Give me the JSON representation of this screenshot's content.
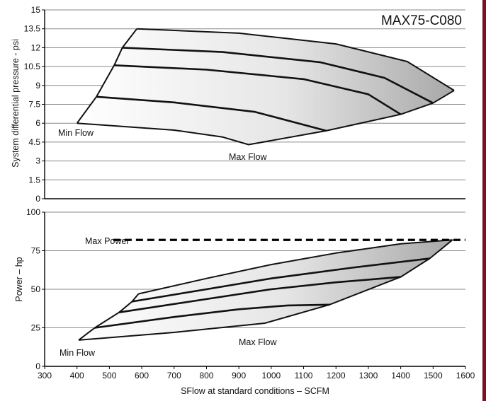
{
  "model_label": "MAX75-C080",
  "right_border_color": "#7a1020",
  "chart_data": [
    {
      "type": "area",
      "title": "MAX75-C080",
      "xlabel": "",
      "ylabel": "System differential pressure - psi",
      "xlim": [
        300,
        1600
      ],
      "ylim": [
        0,
        15
      ],
      "yticks": [
        0,
        1.5,
        3,
        4.5,
        6,
        7.5,
        9,
        10.5,
        12,
        13.5,
        15
      ],
      "yticklabels": [
        "0",
        "1.5",
        "3",
        "4.5",
        "6",
        "7.5",
        "9",
        "10.5",
        "12",
        "13.5",
        "15"
      ],
      "grid": true,
      "annotations": [
        "Min Flow",
        "Max Flow"
      ],
      "envelope": {
        "min_flow": [
          [
            400,
            6
          ],
          [
            460,
            8.1
          ],
          [
            515,
            10.6
          ],
          [
            540,
            12
          ],
          [
            585,
            13.5
          ]
        ],
        "max_flow": [
          [
            400,
            6
          ],
          [
            700,
            5.45
          ],
          [
            850,
            4.9
          ],
          [
            930,
            4.3
          ],
          [
            1170,
            5.4
          ],
          [
            1400,
            6.7
          ],
          [
            1500,
            7.6
          ],
          [
            1565,
            8.6
          ]
        ],
        "top": [
          [
            585,
            13.5
          ],
          [
            900,
            13.15
          ],
          [
            1200,
            12.3
          ],
          [
            1420,
            10.9
          ],
          [
            1565,
            8.6
          ]
        ]
      },
      "series": [
        {
          "values": [
            [
              460,
              8.1
            ],
            [
              700,
              7.65
            ],
            [
              950,
              6.9
            ],
            [
              1170,
              5.4
            ]
          ]
        },
        {
          "values": [
            [
              515,
              10.6
            ],
            [
              800,
              10.25
            ],
            [
              1100,
              9.5
            ],
            [
              1300,
              8.3
            ],
            [
              1400,
              6.7
            ]
          ]
        },
        {
          "values": [
            [
              540,
              12
            ],
            [
              850,
              11.65
            ],
            [
              1150,
              10.85
            ],
            [
              1350,
              9.6
            ],
            [
              1500,
              7.6
            ]
          ]
        }
      ]
    },
    {
      "type": "area",
      "title": "",
      "xlabel": "SFlow at standard conditions – SCFM",
      "ylabel": "Power – hp",
      "xlim": [
        300,
        1600
      ],
      "ylim": [
        0,
        100
      ],
      "xticks": [
        300,
        400,
        500,
        600,
        700,
        800,
        900,
        1000,
        1100,
        1200,
        1300,
        1400,
        1500,
        1600
      ],
      "xticklabels": [
        "300",
        "400",
        "500",
        "600",
        "700",
        "800",
        "900",
        "1000",
        "1100",
        "1200",
        "1300",
        "1400",
        "1500",
        "1600"
      ],
      "yticks": [
        0,
        25,
        50,
        75,
        100
      ],
      "yticklabels": [
        "0",
        "25",
        "50",
        "75",
        "100"
      ],
      "grid": true,
      "annotations": [
        "Min Flow",
        "Max Flow",
        "Max Power"
      ],
      "max_power": 82,
      "envelope": {
        "min_flow": [
          [
            405,
            17
          ],
          [
            455,
            25
          ],
          [
            530,
            35
          ],
          [
            570,
            42
          ],
          [
            590,
            47
          ]
        ],
        "max_flow": [
          [
            405,
            17
          ],
          [
            700,
            22
          ],
          [
            980,
            28
          ],
          [
            1180,
            40
          ],
          [
            1400,
            58
          ],
          [
            1490,
            70
          ],
          [
            1560,
            82
          ]
        ],
        "top": [
          [
            590,
            47
          ],
          [
            800,
            57
          ],
          [
            1000,
            66
          ],
          [
            1200,
            73.5
          ],
          [
            1400,
            79.5
          ],
          [
            1560,
            82
          ]
        ]
      },
      "series": [
        {
          "values": [
            [
              455,
              25
            ],
            [
              700,
              32
            ],
            [
              900,
              37
            ],
            [
              1050,
              39.5
            ],
            [
              1180,
              40
            ]
          ]
        },
        {
          "values": [
            [
              530,
              35
            ],
            [
              750,
              42
            ],
            [
              1000,
              50
            ],
            [
              1200,
              54.5
            ],
            [
              1400,
              58
            ]
          ]
        },
        {
          "values": [
            [
              570,
              42
            ],
            [
              800,
              50
            ],
            [
              1000,
              57
            ],
            [
              1250,
              64
            ],
            [
              1490,
              70
            ]
          ]
        }
      ]
    }
  ],
  "texts": {
    "top_min_flow": "Min Flow",
    "top_max_flow": "Max Flow",
    "bottom_min_flow": "Min Flow",
    "bottom_max_flow": "Max Flow",
    "max_power": "Max Power"
  }
}
